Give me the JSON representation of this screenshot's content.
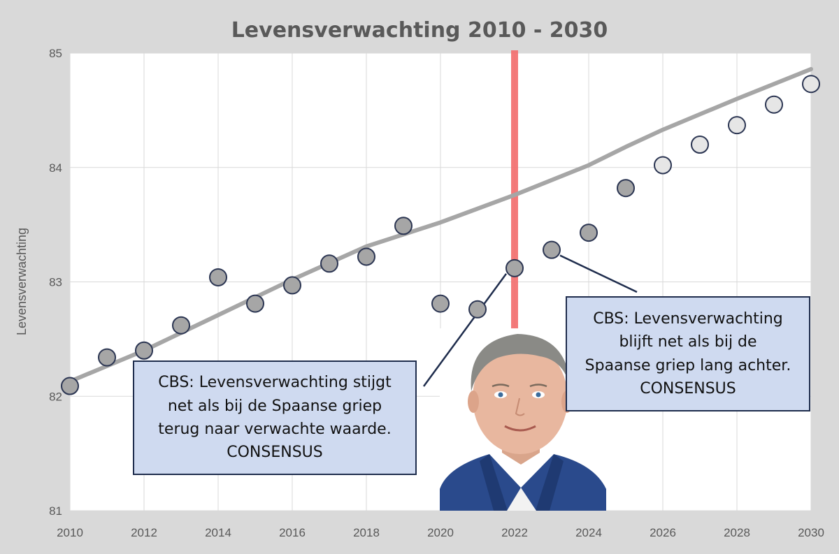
{
  "chart_data": {
    "type": "scatter",
    "title": "Levensverwachting 2010 - 2030",
    "xlabel": "",
    "ylabel": "Levensverwachting",
    "xlim": [
      2010,
      2030
    ],
    "ylim": [
      81,
      85
    ],
    "x_ticks": [
      "2010",
      "2012",
      "2014",
      "2016",
      "2018",
      "2020",
      "2022",
      "2024",
      "2026",
      "2028",
      "2030"
    ],
    "y_ticks": [
      "81",
      "82",
      "83",
      "84",
      "85"
    ],
    "grid": true,
    "series": [
      {
        "type": "line",
        "color": "#a6a6a6",
        "x": [
          2010,
          2012,
          2014,
          2016,
          2018,
          2020,
          2022,
          2024,
          2025,
          2026,
          2028,
          2030
        ],
        "y": [
          82.13,
          82.4,
          82.71,
          83.02,
          83.31,
          83.52,
          83.76,
          84.02,
          84.18,
          84.33,
          84.6,
          84.86
        ]
      },
      {
        "type": "scatter",
        "color": "#a6a6a6",
        "x": [
          2010,
          2011,
          2012,
          2013,
          2014,
          2015,
          2016,
          2017,
          2018,
          2019,
          2020,
          2021,
          2022,
          2023,
          2024,
          2025
        ],
        "y": [
          82.09,
          82.34,
          82.4,
          82.62,
          83.04,
          82.81,
          82.97,
          83.16,
          83.22,
          83.49,
          82.81,
          82.76,
          83.12,
          83.28,
          83.43,
          83.82
        ]
      },
      {
        "type": "scatter",
        "color": "#e6e6e6",
        "x": [
          2026,
          2027,
          2028,
          2029,
          2030
        ],
        "y": [
          84.02,
          84.2,
          84.37,
          84.55,
          84.73
        ]
      }
    ],
    "vline": {
      "x": 2022,
      "color": "#f26b6b"
    },
    "annotations": [
      {
        "id": "left",
        "lines": [
          "CBS: Levensverwachting stijgt",
          "net als bij de Spaanse griep",
          "terug naar verwachte waarde.",
          "CONSENSUS"
        ],
        "points_to": {
          "x": 2022,
          "y": 83.12
        }
      },
      {
        "id": "right",
        "lines": [
          "CBS: Levensverwachting",
          "blijft net als bij de",
          "Spaanse griep lang achter.",
          "CONSENSUS"
        ],
        "points_to": {
          "x": 2023,
          "y": 83.28
        }
      }
    ]
  }
}
